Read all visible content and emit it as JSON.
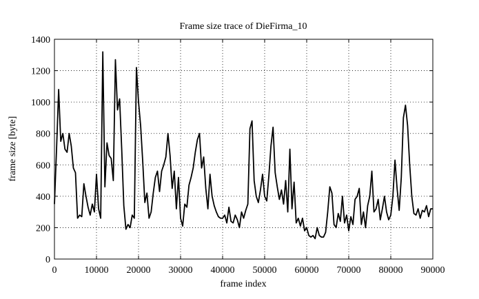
{
  "chart_data": {
    "type": "line",
    "title": "Frame size trace of DieFirma_10",
    "x_label": "frame index",
    "y_label": "frame size [byte]",
    "xlim": [
      0,
      90000
    ],
    "xticks": [
      0,
      10000,
      20000,
      30000,
      40000,
      50000,
      60000,
      70000,
      80000,
      90000
    ],
    "ylim": [
      0,
      1400
    ],
    "yticks": [
      0,
      200,
      400,
      600,
      800,
      1000,
      1200,
      1400
    ],
    "grid": true,
    "x": [
      0,
      500,
      1000,
      1500,
      2000,
      2500,
      3000,
      3500,
      4000,
      4500,
      5000,
      5500,
      6000,
      6500,
      7000,
      7500,
      8000,
      8500,
      9000,
      9500,
      10000,
      10500,
      11000,
      11500,
      12000,
      12500,
      13000,
      13500,
      14000,
      14500,
      15000,
      15500,
      16000,
      16500,
      17000,
      17500,
      18000,
      18500,
      19000,
      19500,
      20000,
      20500,
      21000,
      21500,
      22000,
      22500,
      23000,
      23500,
      24000,
      24500,
      25000,
      25500,
      26000,
      26500,
      27000,
      27500,
      28000,
      28500,
      29000,
      29500,
      30000,
      30500,
      31000,
      31500,
      32000,
      32500,
      33000,
      33500,
      34000,
      34500,
      35000,
      35500,
      36000,
      36500,
      37000,
      37500,
      38000,
      38500,
      39000,
      39500,
      40000,
      40500,
      41000,
      41500,
      42000,
      42500,
      43000,
      43500,
      44000,
      44500,
      45000,
      45500,
      46000,
      46500,
      47000,
      47500,
      48000,
      48500,
      49000,
      49500,
      50000,
      50500,
      51000,
      51500,
      52000,
      52500,
      53000,
      53500,
      54000,
      54500,
      55000,
      55500,
      56000,
      56500,
      57000,
      57500,
      58000,
      58500,
      59000,
      59500,
      60000,
      60500,
      61000,
      61500,
      62000,
      62500,
      63000,
      63500,
      64000,
      64500,
      65000,
      65500,
      66000,
      66500,
      67000,
      67500,
      68000,
      68500,
      69000,
      69500,
      70000,
      70500,
      71000,
      71500,
      72000,
      72500,
      73000,
      73500,
      74000,
      74500,
      75000,
      75500,
      76000,
      76500,
      77000,
      77500,
      78000,
      78500,
      79000,
      79500,
      80000,
      80500,
      81000,
      81500,
      82000,
      82500,
      83000,
      83500,
      84000,
      84500,
      85000,
      85500,
      86000,
      86500,
      87000,
      87500,
      88000,
      88500,
      89000,
      89500,
      90000
    ],
    "series": [
      {
        "color": "#000000",
        "values": [
          350,
          700,
          1080,
          750,
          800,
          700,
          680,
          800,
          720,
          580,
          550,
          260,
          280,
          270,
          480,
          400,
          330,
          280,
          350,
          300,
          540,
          320,
          260,
          1320,
          460,
          740,
          660,
          640,
          500,
          1270,
          950,
          1020,
          700,
          340,
          190,
          220,
          200,
          280,
          260,
          1220,
          1000,
          850,
          620,
          360,
          420,
          260,
          300,
          420,
          520,
          560,
          430,
          560,
          600,
          650,
          800,
          660,
          450,
          560,
          320,
          520,
          260,
          210,
          350,
          330,
          470,
          520,
          580,
          680,
          760,
          800,
          580,
          650,
          450,
          320,
          540,
          400,
          340,
          300,
          270,
          260,
          260,
          280,
          230,
          330,
          240,
          230,
          280,
          250,
          200,
          300,
          260,
          310,
          350,
          830,
          880,
          500,
          400,
          360,
          440,
          540,
          400,
          370,
          530,
          720,
          840,
          550,
          460,
          380,
          440,
          350,
          500,
          300,
          700,
          320,
          490,
          230,
          260,
          210,
          260,
          180,
          200,
          150,
          140,
          150,
          130,
          200,
          150,
          140,
          140,
          170,
          300,
          460,
          420,
          220,
          200,
          290,
          240,
          400,
          230,
          280,
          180,
          270,
          220,
          380,
          400,
          450,
          220,
          300,
          200,
          340,
          400,
          560,
          300,
          320,
          380,
          250,
          320,
          400,
          300,
          250,
          280,
          400,
          630,
          450,
          310,
          520,
          900,
          980,
          850,
          600,
          400,
          290,
          280,
          320,
          260,
          310,
          300,
          340,
          270,
          320,
          320
        ]
      }
    ]
  }
}
